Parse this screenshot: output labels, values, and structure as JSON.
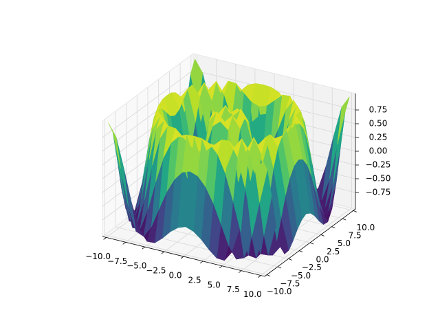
{
  "chart_data": {
    "type": "surface",
    "colormap": "viridis",
    "grid": true,
    "x": [
      -10,
      -9,
      -8,
      -7,
      -6,
      -5,
      -4,
      -3,
      -2,
      -1,
      0,
      1,
      2,
      3,
      4,
      5,
      6,
      7,
      8,
      9,
      10
    ],
    "y": [
      -10,
      -9,
      -8,
      -7,
      -6,
      -5,
      -4,
      -3,
      -2,
      -1,
      0,
      1,
      2,
      3,
      4,
      5,
      6,
      7,
      8,
      9,
      10
    ],
    "z": [
      [
        1.0,
        0.78,
        0.24,
        -0.35,
        -0.79,
        -0.98,
        -0.97,
        -0.85,
        -0.7,
        -0.59,
        -0.54,
        -0.59,
        -0.7,
        -0.85,
        -0.97,
        -0.98,
        -0.79,
        -0.35,
        0.24,
        0.78,
        1.0
      ],
      [
        0.78,
        0.16,
        -0.5,
        -0.92,
        -0.98,
        -0.77,
        -0.41,
        -0.06,
        0.2,
        0.36,
        0.41,
        0.36,
        0.2,
        -0.06,
        -0.41,
        -0.77,
        -0.98,
        -0.92,
        -0.5,
        0.16,
        0.78
      ],
      [
        0.24,
        -0.5,
        -0.95,
        -0.93,
        -0.54,
        -0.01,
        0.46,
        0.77,
        0.92,
        0.98,
        0.99,
        0.98,
        0.92,
        0.77,
        0.46,
        -0.01,
        -0.54,
        -0.93,
        -0.95,
        -0.5,
        0.24
      ],
      [
        -0.35,
        -0.92,
        -0.93,
        -0.46,
        0.2,
        0.73,
        0.98,
        0.97,
        0.84,
        0.71,
        0.66,
        0.71,
        0.84,
        0.97,
        0.98,
        0.73,
        0.2,
        -0.46,
        -0.93,
        -0.92,
        -0.35
      ],
      [
        -0.79,
        -0.98,
        -0.54,
        0.2,
        0.81,
        1.0,
        0.8,
        0.41,
        0.04,
        -0.2,
        -0.28,
        -0.2,
        0.04,
        0.41,
        0.8,
        1.0,
        0.81,
        0.2,
        -0.54,
        -0.98,
        -0.79
      ],
      [
        -0.98,
        -0.77,
        -0.01,
        0.73,
        1.0,
        0.71,
        0.12,
        -0.44,
        -0.78,
        -0.93,
        -0.96,
        -0.93,
        -0.78,
        -0.44,
        0.12,
        0.71,
        1.0,
        0.73,
        -0.01,
        -0.77,
        -0.98
      ],
      [
        -0.97,
        -0.41,
        0.46,
        0.98,
        0.8,
        0.12,
        -0.59,
        -0.96,
        -0.97,
        -0.83,
        -0.76,
        -0.83,
        -0.97,
        -0.96,
        -0.59,
        0.12,
        0.8,
        0.98,
        0.46,
        -0.41,
        -0.97
      ],
      [
        -0.85,
        -0.06,
        0.77,
        0.97,
        0.41,
        -0.44,
        -0.96,
        -0.89,
        -0.45,
        -0.02,
        0.14,
        -0.02,
        -0.45,
        -0.89,
        -0.96,
        -0.44,
        0.41,
        0.97,
        0.77,
        -0.06,
        -0.85
      ],
      [
        -0.7,
        0.2,
        0.92,
        0.84,
        0.04,
        -0.78,
        -0.97,
        -0.45,
        0.31,
        0.79,
        0.91,
        0.79,
        0.31,
        -0.45,
        -0.97,
        -0.78,
        0.04,
        0.84,
        0.92,
        0.2,
        -0.7
      ],
      [
        -0.59,
        0.36,
        0.98,
        0.71,
        -0.2,
        -0.93,
        -0.83,
        -0.02,
        0.79,
        0.99,
        0.84,
        0.99,
        0.79,
        -0.02,
        -0.83,
        -0.93,
        -0.2,
        0.71,
        0.98,
        0.36,
        -0.59
      ],
      [
        -0.54,
        0.41,
        0.99,
        0.66,
        -0.28,
        -0.96,
        -0.76,
        0.14,
        0.91,
        0.84,
        0,
        0.84,
        0.91,
        0.14,
        -0.76,
        -0.96,
        -0.28,
        0.66,
        0.99,
        0.41,
        -0.54
      ],
      [
        -0.59,
        0.36,
        0.98,
        0.71,
        -0.2,
        -0.93,
        -0.83,
        -0.02,
        0.79,
        0.99,
        0.84,
        0.99,
        0.79,
        -0.02,
        -0.83,
        -0.93,
        -0.2,
        0.71,
        0.98,
        0.36,
        -0.59
      ],
      [
        -0.7,
        0.2,
        0.92,
        0.84,
        0.04,
        -0.78,
        -0.97,
        -0.45,
        0.31,
        0.79,
        0.91,
        0.79,
        0.31,
        -0.45,
        -0.97,
        -0.78,
        0.04,
        0.84,
        0.92,
        0.2,
        -0.7
      ],
      [
        -0.85,
        -0.06,
        0.77,
        0.97,
        0.41,
        -0.44,
        -0.96,
        -0.89,
        -0.45,
        -0.02,
        0.14,
        -0.02,
        -0.45,
        -0.89,
        -0.96,
        -0.44,
        0.41,
        0.97,
        0.77,
        -0.06,
        -0.85
      ],
      [
        -0.97,
        -0.41,
        0.46,
        0.98,
        0.8,
        0.12,
        -0.59,
        -0.96,
        -0.97,
        -0.83,
        -0.76,
        -0.83,
        -0.97,
        -0.96,
        -0.59,
        0.12,
        0.8,
        0.98,
        0.46,
        -0.41,
        -0.97
      ],
      [
        -0.98,
        -0.77,
        -0.01,
        0.73,
        1.0,
        0.71,
        0.12,
        -0.44,
        -0.78,
        -0.93,
        -0.96,
        -0.93,
        -0.78,
        -0.44,
        0.12,
        0.71,
        1.0,
        0.73,
        -0.01,
        -0.77,
        -0.98
      ],
      [
        -0.79,
        -0.98,
        -0.54,
        0.2,
        0.81,
        1.0,
        0.8,
        0.41,
        0.04,
        -0.2,
        -0.28,
        -0.2,
        0.04,
        0.41,
        0.8,
        1.0,
        0.81,
        0.2,
        -0.54,
        -0.98,
        -0.79
      ],
      [
        -0.35,
        -0.92,
        -0.93,
        -0.46,
        0.2,
        0.73,
        0.98,
        0.97,
        0.84,
        0.71,
        0.66,
        0.71,
        0.84,
        0.97,
        0.98,
        0.73,
        0.2,
        -0.46,
        -0.93,
        -0.92,
        -0.35
      ],
      [
        0.24,
        -0.5,
        -0.95,
        -0.93,
        -0.54,
        -0.01,
        0.46,
        0.77,
        0.92,
        0.98,
        0.99,
        0.98,
        0.92,
        0.77,
        0.46,
        -0.01,
        -0.54,
        -0.93,
        -0.95,
        -0.5,
        0.24
      ],
      [
        0.78,
        0.16,
        -0.5,
        -0.92,
        -0.98,
        -0.77,
        -0.41,
        -0.06,
        0.2,
        0.36,
        0.41,
        0.36,
        0.2,
        -0.06,
        -0.41,
        -0.77,
        -0.98,
        -0.92,
        -0.5,
        0.16,
        0.78
      ],
      [
        1.0,
        0.78,
        0.24,
        -0.35,
        -0.79,
        -0.98,
        -0.97,
        -0.85,
        -0.7,
        -0.59,
        -0.54,
        -0.59,
        -0.7,
        -0.85,
        -0.97,
        -0.98,
        -0.79,
        -0.35,
        0.24,
        0.78,
        1.0
      ]
    ],
    "xlim": [
      -10.5,
      10.5
    ],
    "ylim": [
      -10.5,
      10.5
    ],
    "zlim": [
      -1.05,
      1.05
    ],
    "xticks": [
      {
        "value": -10,
        "label": "−10.0"
      },
      {
        "value": -7.5,
        "label": "−7.5"
      },
      {
        "value": -5,
        "label": "−5.0"
      },
      {
        "value": -2.5,
        "label": "−2.5"
      },
      {
        "value": 0,
        "label": "0.0"
      },
      2.5,
      {
        "value": 5,
        "label": "5.0"
      },
      7.5,
      {
        "value": 10,
        "label": "10.0"
      }
    ],
    "yticks": [
      {
        "value": -10,
        "label": "−10.0"
      },
      {
        "value": -7.5,
        "label": "−7.5"
      },
      {
        "value": -5,
        "label": "−5.0"
      },
      {
        "value": -2.5,
        "label": "−2.5"
      },
      {
        "value": 0,
        "label": "0.0"
      },
      2.5,
      {
        "value": 5,
        "label": "5.0"
      },
      7.5,
      {
        "value": 10,
        "label": "10.0"
      }
    ],
    "zticks": [
      {
        "value": -0.75,
        "label": "−0.75"
      },
      {
        "value": -0.5,
        "label": "−0.50"
      },
      {
        "value": -0.25,
        "label": "−0.25"
      },
      {
        "value": 0,
        "label": "0.00"
      },
      0.25,
      {
        "value": 0.5,
        "label": "0.50"
      },
      0.75
    ]
  }
}
